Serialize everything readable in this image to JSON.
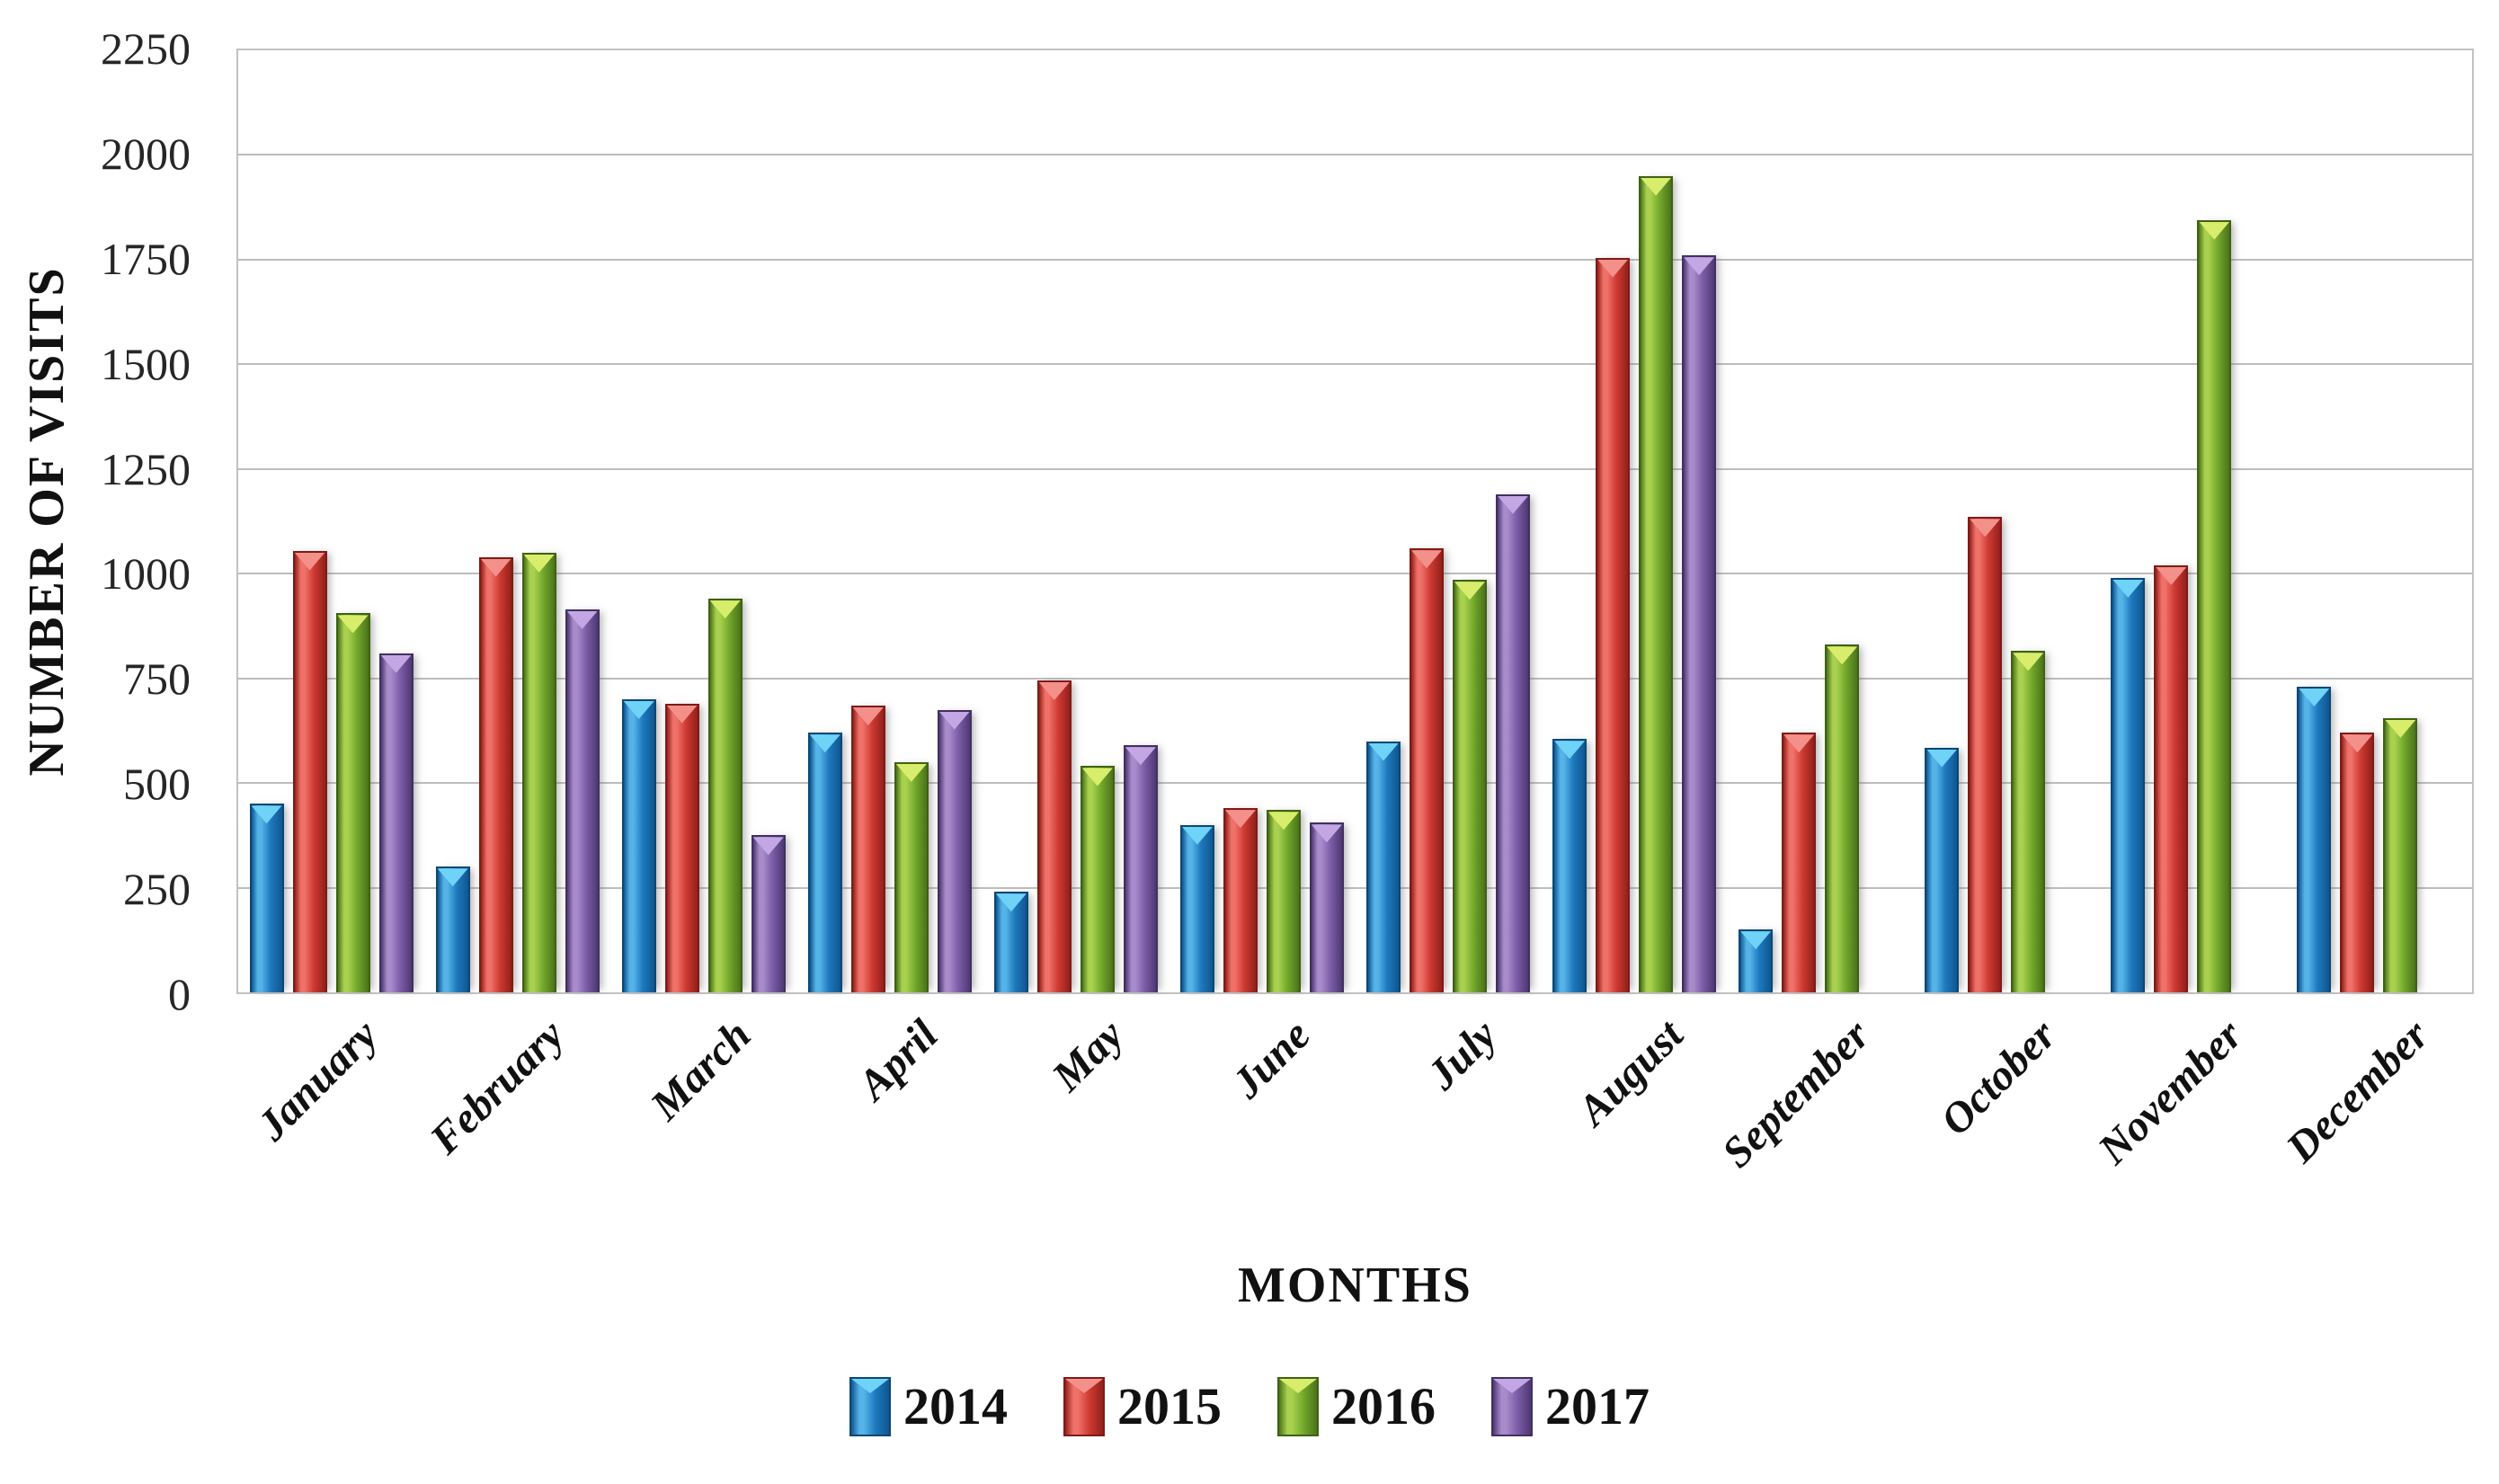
{
  "chart_data": {
    "type": "bar",
    "title": "",
    "xlabel": "MONTHS",
    "ylabel": "NUMBER OF VISITS",
    "ylim": [
      0,
      2250
    ],
    "ytick_step": 250,
    "yticks": [
      0,
      250,
      500,
      750,
      1000,
      1250,
      1500,
      1750,
      2000,
      2250
    ],
    "grid": true,
    "legend_position": "bottom",
    "categories": [
      "January",
      "February",
      "March",
      "April",
      "May",
      "June",
      "July",
      "August",
      "September",
      "October",
      "November",
      "December"
    ],
    "series": [
      {
        "name": "2014",
        "color_main": "#1e79bd",
        "color_light": "#55b3e8",
        "color_dark": "#0f5691",
        "color_edge": "#0c4775",
        "color_cap": "#6fd2f7",
        "values": [
          450,
          300,
          700,
          620,
          240,
          400,
          600,
          605,
          150,
          585,
          990,
          730
        ]
      },
      {
        "name": "2015",
        "color_main": "#ce3a32",
        "color_light": "#ef7169",
        "color_dark": "#93201b",
        "color_edge": "#7e1b17",
        "color_cap": "#f4908a",
        "values": [
          1055,
          1040,
          690,
          685,
          745,
          440,
          1060,
          1755,
          620,
          1135,
          1020,
          620
        ]
      },
      {
        "name": "2016",
        "color_main": "#73a92c",
        "color_light": "#a9d14f",
        "color_dark": "#4b731b",
        "color_edge": "#3f6114",
        "color_cap": "#d8ed6c",
        "values": [
          905,
          1050,
          940,
          550,
          540,
          435,
          985,
          1950,
          830,
          815,
          1845,
          655
        ]
      },
      {
        "name": "2017",
        "color_main": "#7c5da8",
        "color_light": "#a88bcb",
        "color_dark": "#4e3973",
        "color_edge": "#413061",
        "color_cap": "#c3a6e4",
        "values": [
          810,
          915,
          375,
          675,
          590,
          405,
          1190,
          1760,
          null,
          null,
          null,
          null
        ]
      }
    ],
    "colors": {
      "gridline": "#bdbdbd",
      "plot_border": "#c2c2c2",
      "text": "#111111"
    }
  }
}
